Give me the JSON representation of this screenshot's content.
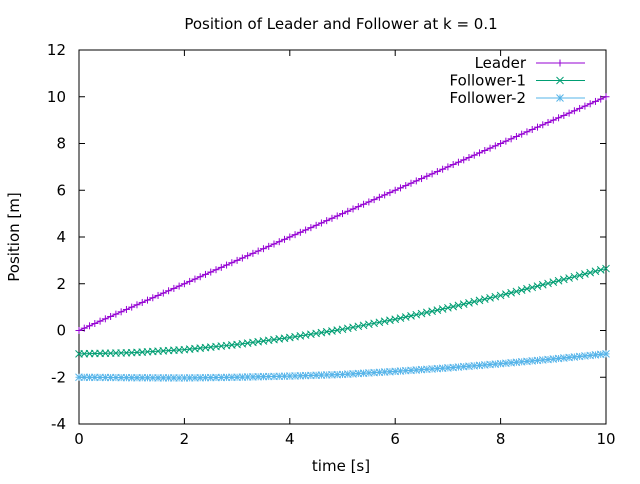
{
  "chart_data": {
    "type": "line",
    "title": "Position of Leader and Follower at k = 0.1",
    "xlabel": "time [s]",
    "ylabel": "Position [m]",
    "xlim": [
      0,
      10
    ],
    "ylim": [
      -4,
      12
    ],
    "xticks": [
      0,
      2,
      4,
      6,
      8,
      10
    ],
    "yticks": [
      -4,
      -2,
      0,
      2,
      4,
      6,
      8,
      10,
      12
    ],
    "grid": false,
    "legend_position": "top-right",
    "series": [
      {
        "name": "Leader",
        "color": "#9400d3",
        "marker": "plus",
        "x": [
          0,
          1,
          2,
          3,
          4,
          5,
          6,
          7,
          8,
          9,
          10
        ],
        "y": [
          0,
          1,
          2,
          3,
          4,
          5,
          6,
          7,
          8,
          9,
          10
        ]
      },
      {
        "name": "Follower-1",
        "color": "#009e73",
        "marker": "cross",
        "x": [
          0,
          1,
          2,
          3,
          4,
          5,
          6,
          7,
          8,
          9,
          10
        ],
        "y": [
          -1.0,
          -0.95,
          -0.82,
          -0.6,
          -0.3,
          0.05,
          0.48,
          0.97,
          1.5,
          2.07,
          2.65
        ]
      },
      {
        "name": "Follower-2",
        "color": "#56b4e9",
        "marker": "star",
        "x": [
          0,
          1,
          2,
          3,
          4,
          5,
          6,
          7,
          8,
          9,
          10
        ],
        "y": [
          -2.0,
          -2.02,
          -2.03,
          -2.0,
          -1.95,
          -1.88,
          -1.75,
          -1.6,
          -1.42,
          -1.22,
          -1.0
        ]
      }
    ]
  }
}
